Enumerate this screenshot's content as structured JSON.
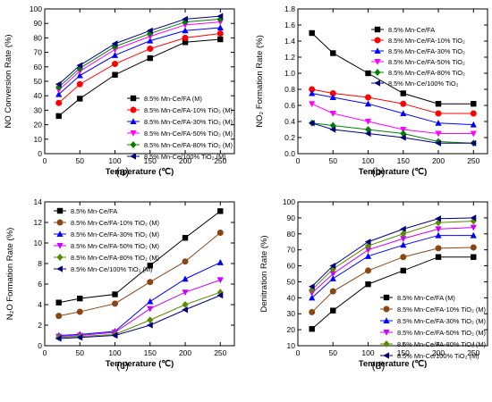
{
  "chart_data": [
    {
      "type": "line",
      "panel_label": "(a)",
      "xlabel": "Temperature (℃)",
      "ylabel": "NO Conversion Rate (%)",
      "xlim": [
        0,
        270
      ],
      "ylim": [
        0,
        100
      ],
      "xticks": [
        0,
        50,
        100,
        150,
        200,
        250
      ],
      "yticks": [
        0,
        10,
        20,
        30,
        40,
        50,
        60,
        70,
        80,
        90,
        100
      ],
      "legend_position": "lower right",
      "x": [
        20,
        50,
        100,
        150,
        200,
        250
      ],
      "series": [
        {
          "name": "8.5% Mn-Ce/FA (M)",
          "color": "#000000",
          "marker": "square",
          "values": [
            26,
            38,
            54.5,
            66,
            77,
            79
          ]
        },
        {
          "name": "8.5% Mn-Ce/FA-10% TiO₂ (M)",
          "color": "#ff0000",
          "marker": "circle",
          "values": [
            35,
            48,
            62,
            72.5,
            80,
            83
          ]
        },
        {
          "name": "8.5% Mn-Ce/FA-30% TiO₂ (M)",
          "color": "#0000ff",
          "marker": "triangle-up",
          "values": [
            41,
            54,
            68,
            78,
            85,
            87
          ]
        },
        {
          "name": "8.5% Mn-Ce/FA-50% TiO₂ (M)",
          "color": "#ff00ff",
          "marker": "triangle-down",
          "values": [
            44,
            57,
            72,
            81,
            89,
            91
          ]
        },
        {
          "name": "8.5% Mn-Ce/FA-80% TiO₂ (M)",
          "color": "#008000",
          "marker": "diamond",
          "values": [
            46,
            59,
            74,
            83,
            91,
            93
          ]
        },
        {
          "name": "8.5% Mn-Ce/100% TiO₂ (M)",
          "color": "#000080",
          "marker": "triangle-left",
          "values": [
            48,
            61,
            76,
            85,
            93,
            95
          ]
        }
      ]
    },
    {
      "type": "line",
      "panel_label": "(b)",
      "xlabel": "Temperature (℃)",
      "ylabel": "NO₂ Formation Rate (%)",
      "xlim": [
        0,
        270
      ],
      "ylim": [
        0,
        1.8
      ],
      "xticks": [
        0,
        50,
        100,
        150,
        200,
        250
      ],
      "yticks": [
        0.0,
        0.2,
        0.4,
        0.6,
        0.8,
        1.0,
        1.2,
        1.4,
        1.6,
        1.8
      ],
      "legend_position": "upper right",
      "x": [
        20,
        50,
        100,
        150,
        200,
        250
      ],
      "series": [
        {
          "name": "8.5% Mn-Ce/FA",
          "color": "#000000",
          "marker": "square",
          "values": [
            1.5,
            1.25,
            1.0,
            0.75,
            0.62,
            0.62
          ]
        },
        {
          "name": "8.5% Mn-Ce/FA-10% TiO₂",
          "color": "#ff0000",
          "marker": "circle",
          "values": [
            0.8,
            0.75,
            0.7,
            0.62,
            0.5,
            0.5
          ]
        },
        {
          "name": "8.5% Mn-Ce/FA-30% TiO₂",
          "color": "#0000ff",
          "marker": "triangle-up",
          "values": [
            0.75,
            0.7,
            0.62,
            0.5,
            0.38,
            0.36
          ]
        },
        {
          "name": "8.5% Mn-Ce/FA-50% TiO₂",
          "color": "#ff00ff",
          "marker": "triangle-down",
          "values": [
            0.62,
            0.5,
            0.4,
            0.3,
            0.25,
            0.25
          ]
        },
        {
          "name": "8.5% Mn-Ce/FA-80% TiO₂",
          "color": "#008000",
          "marker": "diamond",
          "values": [
            0.38,
            0.35,
            0.3,
            0.25,
            0.15,
            0.13
          ]
        },
        {
          "name": "8.5% Mn-Ce/100% TiO₂",
          "color": "#000080",
          "marker": "triangle-left",
          "values": [
            0.38,
            0.3,
            0.25,
            0.2,
            0.13,
            0.13
          ]
        }
      ]
    },
    {
      "type": "line",
      "panel_label": "(c)",
      "xlabel": "Temperature (℃)",
      "ylabel": "N₂O Formation Rate (%)",
      "xlim": [
        0,
        270
      ],
      "ylim": [
        0,
        14
      ],
      "xticks": [
        0,
        50,
        100,
        150,
        200,
        250
      ],
      "yticks": [
        0,
        2,
        4,
        6,
        8,
        10,
        12,
        14
      ],
      "legend_position": "upper left",
      "x": [
        20,
        50,
        100,
        150,
        200,
        250
      ],
      "series": [
        {
          "name": "8.5% Mn-Ce/FA",
          "color": "#000000",
          "marker": "square",
          "values": [
            4.2,
            4.6,
            5.0,
            7.8,
            10.5,
            13.1
          ]
        },
        {
          "name": "8.5% Mn-Ce/FA-10% TiO₂ (M)",
          "color": "#8b4513",
          "marker": "circle",
          "values": [
            2.9,
            3.3,
            4.1,
            6.2,
            8.2,
            11.0
          ]
        },
        {
          "name": "8.5% Mn-Ce/FA-30% TiO₂ (M)",
          "color": "#0000ff",
          "marker": "triangle-up",
          "values": [
            1.0,
            1.1,
            1.4,
            4.3,
            6.5,
            8.1
          ]
        },
        {
          "name": "8.5% Mn-Ce/FA-50% TiO₂ (M)",
          "color": "#cc00ff",
          "marker": "triangle-down",
          "values": [
            0.9,
            1.0,
            1.3,
            3.6,
            5.2,
            6.4
          ]
        },
        {
          "name": "8.5% Mn-Ce/FA-80% TiO₂ (M)",
          "color": "#5a8a00",
          "marker": "diamond",
          "values": [
            0.8,
            0.9,
            1.1,
            2.5,
            4.0,
            5.2
          ]
        },
        {
          "name": "8.5% Mn-Ce/100% TiO₂ (M)",
          "color": "#000080",
          "marker": "triangle-left",
          "values": [
            0.7,
            0.8,
            1.0,
            2.0,
            3.5,
            4.9
          ]
        }
      ]
    },
    {
      "type": "line",
      "panel_label": "(d)",
      "xlabel": "Temperature (℃)",
      "ylabel": "Denitration Rate (%)",
      "xlim": [
        0,
        270
      ],
      "ylim": [
        10,
        100
      ],
      "xticks": [
        0,
        50,
        100,
        150,
        200,
        250
      ],
      "yticks": [
        10,
        20,
        30,
        40,
        50,
        60,
        70,
        80,
        90,
        100
      ],
      "legend_position": "lower right",
      "x": [
        20,
        50,
        100,
        150,
        200,
        250
      ],
      "series": [
        {
          "name": "8.5% Mn-Ce/FA (M)",
          "color": "#000000",
          "marker": "square",
          "values": [
            20.5,
            32,
            48.5,
            57,
            65.5,
            65.5
          ]
        },
        {
          "name": "8.5% Mn-Ce/FA-10% TiO₂ (M)",
          "color": "#8b4513",
          "marker": "circle",
          "values": [
            31,
            44,
            57,
            65.5,
            71,
            71.5
          ]
        },
        {
          "name": "8.5% Mn-Ce/FA-30% TiO₂ (M)",
          "color": "#0000ff",
          "marker": "triangle-up",
          "values": [
            40,
            52,
            66,
            73,
            79,
            79
          ]
        },
        {
          "name": "8.5% Mn-Ce/FA-50% TiO₂ (M)",
          "color": "#cc00ff",
          "marker": "triangle-down",
          "values": [
            43,
            55,
            70,
            77,
            83,
            84
          ]
        },
        {
          "name": "8.5% Mn-Ce/FA-80% TiO₂ (M)",
          "color": "#5a8a00",
          "marker": "diamond",
          "values": [
            45,
            58,
            72.5,
            80,
            87,
            88
          ]
        },
        {
          "name": "8.5% Mn-Ce/100% TiO₂ (M)",
          "color": "#000080",
          "marker": "triangle-left",
          "values": [
            47,
            60,
            75,
            83,
            89.5,
            90
          ]
        }
      ]
    }
  ]
}
